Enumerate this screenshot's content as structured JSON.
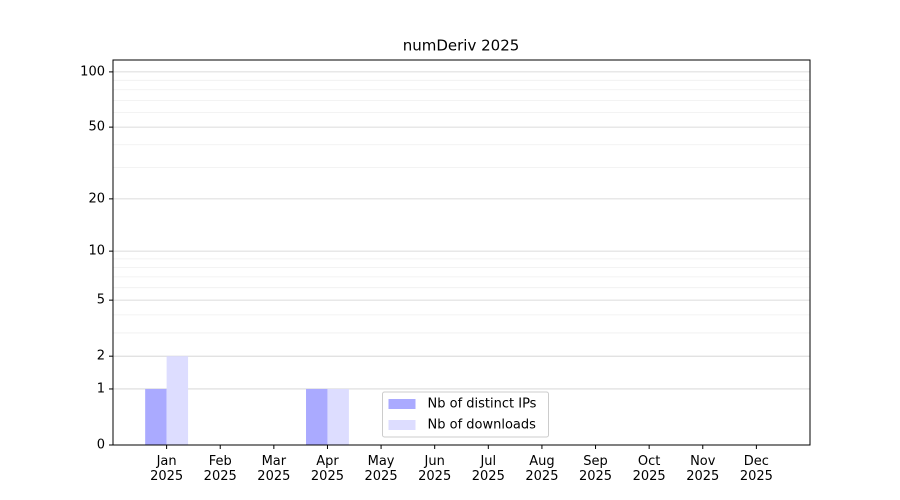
{
  "chart_data": {
    "type": "bar",
    "title": "numDeriv 2025",
    "categories": [
      "Jan\n2025",
      "Feb\n2025",
      "Mar\n2025",
      "Apr\n2025",
      "May\n2025",
      "Jun\n2025",
      "Jul\n2025",
      "Aug\n2025",
      "Sep\n2025",
      "Oct\n2025",
      "Nov\n2025",
      "Dec\n2025"
    ],
    "series": [
      {
        "name": "Nb of distinct IPs",
        "color": "#aaaaff",
        "values": [
          1,
          0,
          0,
          1,
          0,
          0,
          0,
          0,
          0,
          0,
          0,
          0
        ]
      },
      {
        "name": "Nb of downloads",
        "color": "#ddddff",
        "values": [
          2,
          0,
          0,
          1,
          0,
          0,
          0,
          0,
          0,
          0,
          0,
          0
        ]
      }
    ],
    "yscale": "log1p",
    "ylim": [
      0,
      116
    ],
    "yticks": [
      0,
      1,
      2,
      5,
      10,
      20,
      50,
      100
    ],
    "minor_yticks": [
      3,
      4,
      6,
      7,
      8,
      9,
      30,
      40,
      60,
      70,
      80,
      90
    ],
    "grid": true,
    "legend": "lower center"
  }
}
